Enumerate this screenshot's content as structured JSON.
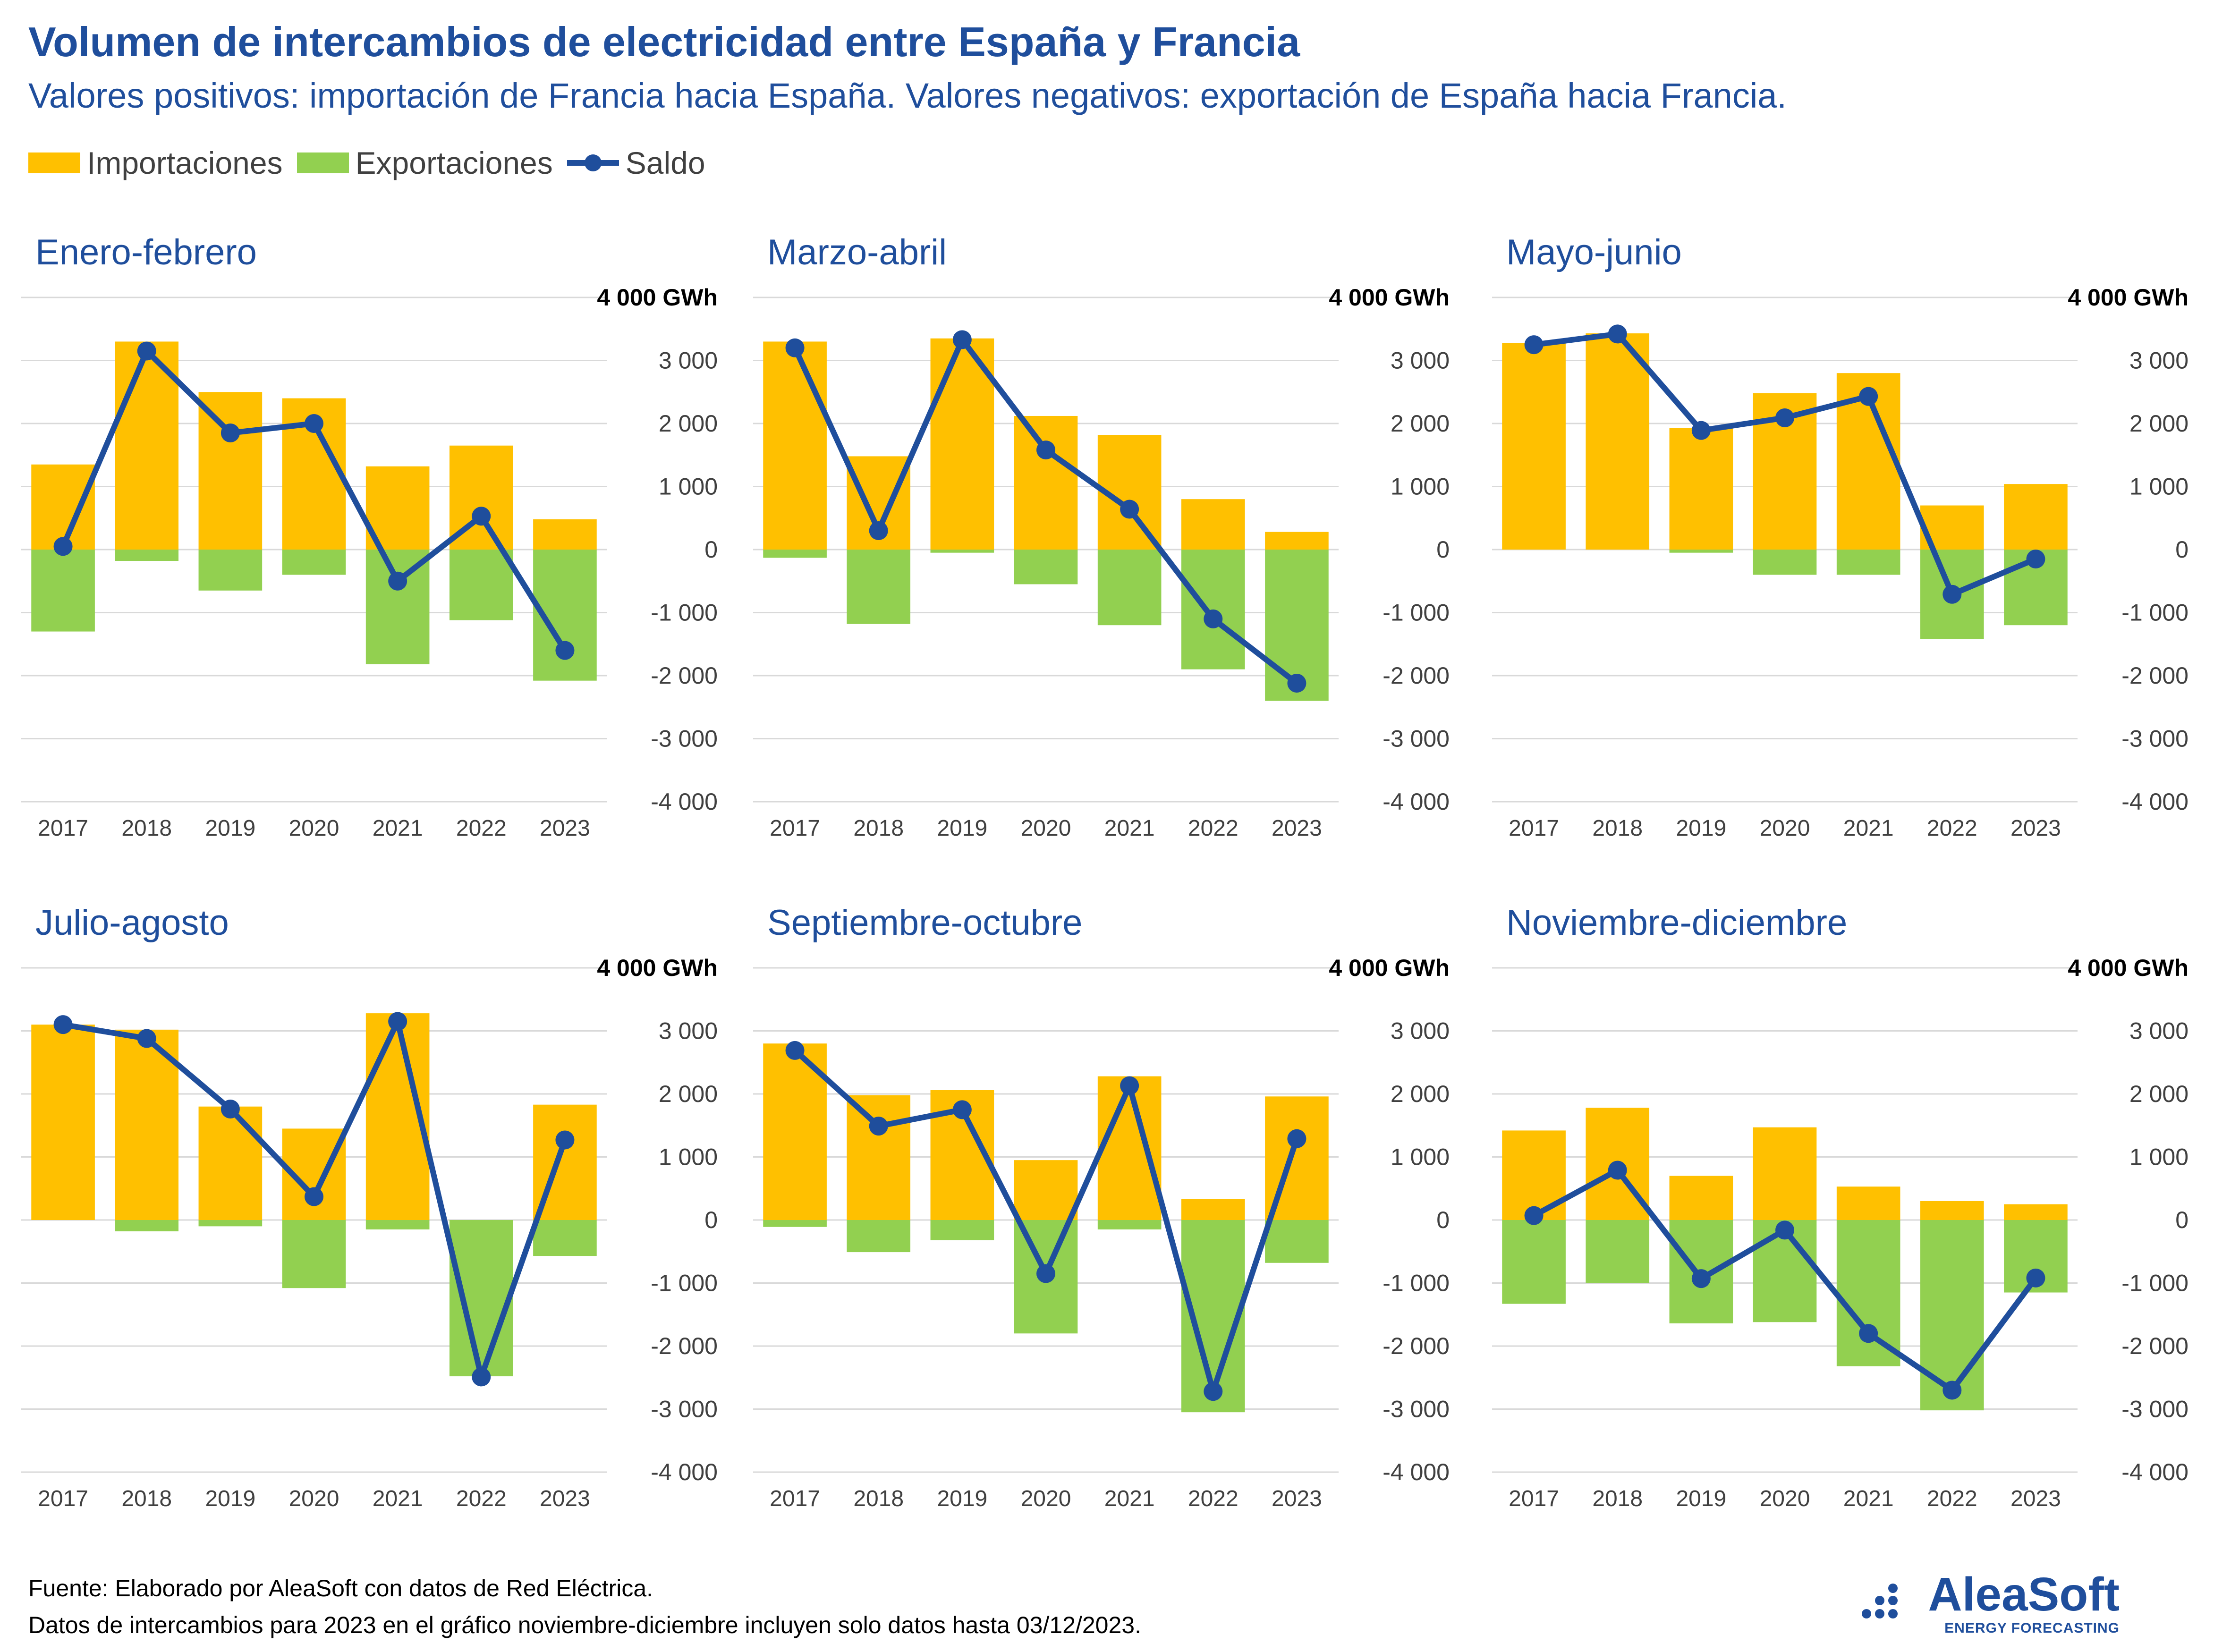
{
  "title": "Volumen de intercambios de electricidad entre España y Francia",
  "subtitle": "Valores positivos: importación de Francia hacia España. Valores negativos: exportación de España hacia Francia.",
  "legend": {
    "imports": "Importaciones",
    "exports": "Exportaciones",
    "balance": "Saldo"
  },
  "colors": {
    "imports": "#ffc000",
    "exports": "#92d050",
    "balance": "#1f4e9c",
    "grid": "#d9d9d9",
    "title": "#1f4e9c"
  },
  "footer": {
    "line1": "Fuente: Elaborado por AleaSoft con datos de Red Eléctrica.",
    "line2": "Datos de intercambios para 2023 en el gráfico noviembre-diciembre incluyen solo datos hasta 03/12/2023."
  },
  "logo": {
    "name": "AleaSoft",
    "tagline": "ENERGY FORECASTING"
  },
  "chart_data": [
    {
      "type": "bar",
      "title": "Enero-febrero",
      "categories": [
        "2017",
        "2018",
        "2019",
        "2020",
        "2021",
        "2022",
        "2023"
      ],
      "ylim": [
        -4000,
        4000
      ],
      "yticks": [
        -4000,
        -3000,
        -2000,
        -1000,
        0,
        1000,
        2000,
        3000,
        4000
      ],
      "ytick_labels": [
        "-4 000",
        "-3 000",
        "-2 000",
        "-1 000",
        "0",
        "1 000",
        "2 000",
        "3 000",
        "4 000 GWh"
      ],
      "series": [
        {
          "name": "Importaciones",
          "values": [
            1350,
            3300,
            2500,
            2400,
            1320,
            1650,
            480
          ]
        },
        {
          "name": "Exportaciones",
          "values": [
            -1300,
            -180,
            -650,
            -400,
            -1820,
            -1120,
            -2080
          ]
        },
        {
          "name": "Saldo",
          "values": [
            50,
            3150,
            1850,
            2000,
            -500,
            530,
            -1600
          ]
        }
      ]
    },
    {
      "type": "bar",
      "title": "Marzo-abril",
      "categories": [
        "2017",
        "2018",
        "2019",
        "2020",
        "2021",
        "2022",
        "2023"
      ],
      "ylim": [
        -4000,
        4000
      ],
      "yticks": [
        -4000,
        -3000,
        -2000,
        -1000,
        0,
        1000,
        2000,
        3000,
        4000
      ],
      "ytick_labels": [
        "-4 000",
        "-3 000",
        "-2 000",
        "-1 000",
        "0",
        "1 000",
        "2 000",
        "3 000",
        "4 000 GWh"
      ],
      "series": [
        {
          "name": "Importaciones",
          "values": [
            3300,
            1480,
            3350,
            2120,
            1820,
            800,
            280
          ]
        },
        {
          "name": "Exportaciones",
          "values": [
            -130,
            -1180,
            -50,
            -550,
            -1200,
            -1900,
            -2400
          ]
        },
        {
          "name": "Saldo",
          "values": [
            3200,
            300,
            3330,
            1580,
            640,
            -1100,
            -2120
          ]
        }
      ]
    },
    {
      "type": "bar",
      "title": "Mayo-junio",
      "categories": [
        "2017",
        "2018",
        "2019",
        "2020",
        "2021",
        "2022",
        "2023"
      ],
      "ylim": [
        -4000,
        4000
      ],
      "yticks": [
        -4000,
        -3000,
        -2000,
        -1000,
        0,
        1000,
        2000,
        3000,
        4000
      ],
      "ytick_labels": [
        "-4 000",
        "-3 000",
        "-2 000",
        "-1 000",
        "0",
        "1 000",
        "2 000",
        "3 000",
        "4 000 GWh"
      ],
      "series": [
        {
          "name": "Importaciones",
          "values": [
            3280,
            3430,
            1930,
            2480,
            2800,
            700,
            1040
          ]
        },
        {
          "name": "Exportaciones",
          "values": [
            0,
            0,
            -50,
            -400,
            -400,
            -1420,
            -1200
          ]
        },
        {
          "name": "Saldo",
          "values": [
            3250,
            3420,
            1890,
            2090,
            2430,
            -710,
            -150
          ]
        }
      ]
    },
    {
      "type": "bar",
      "title": "Julio-agosto",
      "categories": [
        "2017",
        "2018",
        "2019",
        "2020",
        "2021",
        "2022",
        "2023"
      ],
      "ylim": [
        -4000,
        4000
      ],
      "yticks": [
        -4000,
        -3000,
        -2000,
        -1000,
        0,
        1000,
        2000,
        3000,
        4000
      ],
      "ytick_labels": [
        "-4 000",
        "-3 000",
        "-2 000",
        "-1 000",
        "0",
        "1 000",
        "2 000",
        "3 000",
        "4 000 GWh"
      ],
      "series": [
        {
          "name": "Importaciones",
          "values": [
            3100,
            3020,
            1800,
            1450,
            3280,
            0,
            1830
          ]
        },
        {
          "name": "Exportaciones",
          "values": [
            0,
            -180,
            -100,
            -1080,
            -150,
            -2480,
            -570
          ]
        },
        {
          "name": "Saldo",
          "values": [
            3100,
            2880,
            1760,
            370,
            3150,
            -2490,
            1270
          ]
        }
      ]
    },
    {
      "type": "bar",
      "title": "Septiembre-octubre",
      "categories": [
        "2017",
        "2018",
        "2019",
        "2020",
        "2021",
        "2022",
        "2023"
      ],
      "ylim": [
        -4000,
        4000
      ],
      "yticks": [
        -4000,
        -3000,
        -2000,
        -1000,
        0,
        1000,
        2000,
        3000,
        4000
      ],
      "ytick_labels": [
        "-4 000",
        "-3 000",
        "-2 000",
        "-1 000",
        "0",
        "1 000",
        "2 000",
        "3 000",
        "4 000 GWh"
      ],
      "series": [
        {
          "name": "Importaciones",
          "values": [
            2800,
            1980,
            2060,
            950,
            2280,
            330,
            1960
          ]
        },
        {
          "name": "Exportaciones",
          "values": [
            -110,
            -510,
            -320,
            -1800,
            -150,
            -3050,
            -680
          ]
        },
        {
          "name": "Saldo",
          "values": [
            2690,
            1490,
            1750,
            -850,
            2130,
            -2720,
            1290
          ]
        }
      ]
    },
    {
      "type": "bar",
      "title": "Noviembre-diciembre",
      "categories": [
        "2017",
        "2018",
        "2019",
        "2020",
        "2021",
        "2022",
        "2023"
      ],
      "ylim": [
        -4000,
        4000
      ],
      "yticks": [
        -4000,
        -3000,
        -2000,
        -1000,
        0,
        1000,
        2000,
        3000,
        4000
      ],
      "ytick_labels": [
        "-4 000",
        "-3 000",
        "-2 000",
        "-1 000",
        "0",
        "1 000",
        "2 000",
        "3 000",
        "4 000 GWh"
      ],
      "series": [
        {
          "name": "Importaciones",
          "values": [
            1420,
            1780,
            700,
            1470,
            530,
            300,
            250
          ]
        },
        {
          "name": "Exportaciones",
          "values": [
            -1330,
            -1000,
            -1640,
            -1620,
            -2320,
            -3020,
            -1150
          ]
        },
        {
          "name": "Saldo",
          "values": [
            70,
            790,
            -930,
            -160,
            -1800,
            -2700,
            -920
          ]
        }
      ]
    }
  ]
}
